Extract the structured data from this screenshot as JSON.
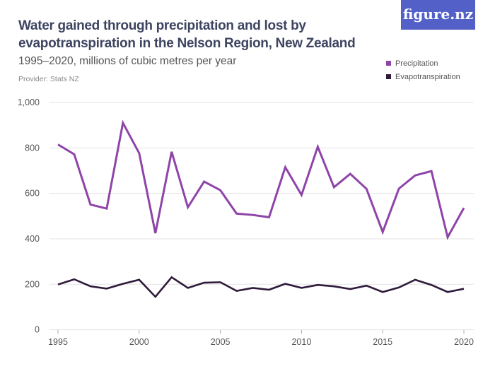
{
  "header": {
    "title": "Water gained through precipitation and lost by evapotranspiration in the Nelson Region, New Zealand",
    "subtitle": "1995–2020, millions of cubic metres per year",
    "provider": "Provider: Stats NZ",
    "logo_text": "figure.nz"
  },
  "colors": {
    "precipitation": "#8e44a8",
    "evapotranspiration": "#2e1a3a",
    "logo_bg": "#5260c8",
    "grid": "#e3e3e3"
  },
  "chart_data": {
    "type": "line",
    "x": [
      1995,
      1996,
      1997,
      1998,
      1999,
      2000,
      2001,
      2002,
      2003,
      2004,
      2005,
      2006,
      2007,
      2008,
      2009,
      2010,
      2011,
      2012,
      2013,
      2014,
      2015,
      2016,
      2017,
      2018,
      2019,
      2020
    ],
    "series": [
      {
        "name": "Precipitation",
        "color": "#8e44a8",
        "values": [
          815,
          772,
          551,
          533,
          910,
          777,
          425,
          783,
          539,
          652,
          614,
          511,
          505,
          495,
          715,
          593,
          805,
          627,
          686,
          620,
          430,
          621,
          679,
          698,
          407,
          536
        ]
      },
      {
        "name": "Evapotranspiration",
        "color": "#2e1a3a",
        "values": [
          199,
          222,
          191,
          181,
          202,
          220,
          145,
          231,
          184,
          207,
          209,
          171,
          184,
          176,
          202,
          184,
          197,
          191,
          179,
          194,
          166,
          186,
          220,
          197,
          166,
          180
        ]
      }
    ],
    "ylim": [
      0,
      1000
    ],
    "y_ticks": [
      "0",
      "200",
      "400",
      "600",
      "800",
      "1,000"
    ],
    "x_ticks": [
      "1995",
      "2000",
      "2005",
      "2010",
      "2015",
      "2020"
    ],
    "grid": true,
    "legend": "top-right"
  }
}
